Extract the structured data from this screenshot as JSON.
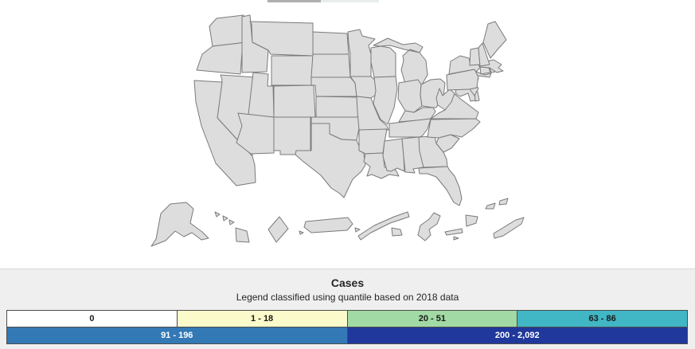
{
  "slider": {
    "filled_color": "#b0aeae",
    "empty_color": "#e8eeec"
  },
  "legend": {
    "title": "Cases",
    "subtitle": "Legend classified using quantile based on 2018 data",
    "panel_background": "#efefef",
    "cell_border_color": "#4c4c4c",
    "classes": [
      {
        "label": "0",
        "color": "#ffffff",
        "text_color": "#1a1a1a",
        "row": 1
      },
      {
        "label": "1 - 18",
        "color": "#fafacb",
        "text_color": "#1a1a1a",
        "row": 1
      },
      {
        "label": "20 - 51",
        "color": "#a2daa5",
        "text_color": "#1a1a1a",
        "row": 1
      },
      {
        "label": "63 - 86",
        "color": "#41b6c4",
        "text_color": "#1a1a1a",
        "row": 1
      },
      {
        "label": "91 - 196",
        "color": "#3379b6",
        "text_color": "#ffffff",
        "row": 2
      },
      {
        "label": "200 - 2,092",
        "color": "#20389b",
        "text_color": "#ffffff",
        "row": 2
      }
    ]
  },
  "map": {
    "border_color": "#7a7a7a",
    "background": "#ffffff",
    "states": [
      {
        "id": "WA",
        "name": "Washington",
        "class": 4
      },
      {
        "id": "OR",
        "name": "Oregon",
        "class": 3
      },
      {
        "id": "CA",
        "name": "California",
        "class": 5
      },
      {
        "id": "NV",
        "name": "Nevada",
        "class": 3
      },
      {
        "id": "ID",
        "name": "Idaho",
        "class": 1
      },
      {
        "id": "MT",
        "name": "Montana",
        "class": 1
      },
      {
        "id": "WY",
        "name": "Wyoming",
        "class": 1
      },
      {
        "id": "UT",
        "name": "Utah",
        "class": 1
      },
      {
        "id": "CO",
        "name": "Colorado",
        "class": 3
      },
      {
        "id": "AZ",
        "name": "Arizona",
        "class": 4
      },
      {
        "id": "NM",
        "name": "New Mexico",
        "class": 2
      },
      {
        "id": "ND",
        "name": "North Dakota",
        "class": 1
      },
      {
        "id": "SD",
        "name": "South Dakota",
        "class": 1
      },
      {
        "id": "NE",
        "name": "Nebraska",
        "class": 2
      },
      {
        "id": "KS",
        "name": "Kansas",
        "class": 2
      },
      {
        "id": "OK",
        "name": "Oklahoma",
        "class": 3
      },
      {
        "id": "TX",
        "name": "Texas",
        "class": 5
      },
      {
        "id": "MN",
        "name": "Minnesota",
        "class": 4
      },
      {
        "id": "IA",
        "name": "Iowa",
        "class": 2
      },
      {
        "id": "MO",
        "name": "Missouri",
        "class": 3
      },
      {
        "id": "AR",
        "name": "Arkansas",
        "class": 3
      },
      {
        "id": "LA",
        "name": "Louisiana",
        "class": 4
      },
      {
        "id": "WI",
        "name": "Wisconsin",
        "class": 2
      },
      {
        "id": "IL",
        "name": "Illinois",
        "class": 5
      },
      {
        "id": "MI",
        "name": "Michigan",
        "class": 4
      },
      {
        "id": "IN",
        "name": "Indiana",
        "class": 4
      },
      {
        "id": "OH",
        "name": "Ohio",
        "class": 4
      },
      {
        "id": "KY",
        "name": "Kentucky",
        "class": 3
      },
      {
        "id": "TN",
        "name": "Tennessee",
        "class": 4
      },
      {
        "id": "MS",
        "name": "Mississippi",
        "class": 3
      },
      {
        "id": "AL",
        "name": "Alabama",
        "class": 4
      },
      {
        "id": "GA",
        "name": "Georgia",
        "class": 5
      },
      {
        "id": "FL",
        "name": "Florida",
        "class": 5
      },
      {
        "id": "SC",
        "name": "South Carolina",
        "class": 3
      },
      {
        "id": "NC",
        "name": "North Carolina",
        "class": 4
      },
      {
        "id": "VA",
        "name": "Virginia",
        "class": 5
      },
      {
        "id": "WV",
        "name": "West Virginia",
        "class": 1
      },
      {
        "id": "MD",
        "name": "Maryland",
        "class": 5
      },
      {
        "id": "DE",
        "name": "Delaware",
        "class": 2
      },
      {
        "id": "NJ",
        "name": "New Jersey",
        "class": 5
      },
      {
        "id": "PA",
        "name": "Pennsylvania",
        "class": 5
      },
      {
        "id": "NY",
        "name": "New York",
        "class": 5
      },
      {
        "id": "CT",
        "name": "Connecticut",
        "class": 2
      },
      {
        "id": "RI",
        "name": "Rhode Island",
        "class": 3
      },
      {
        "id": "MA",
        "name": "Massachusetts",
        "class": 5
      },
      {
        "id": "VT",
        "name": "Vermont",
        "class": 0
      },
      {
        "id": "NH",
        "name": "New Hampshire",
        "class": 1
      },
      {
        "id": "ME",
        "name": "Maine",
        "class": 1
      },
      {
        "id": "AK",
        "name": "Alaska",
        "class": 3
      },
      {
        "id": "HI",
        "name": "Hawaii",
        "class": 4
      },
      {
        "id": "DC",
        "name": "District of Columbia",
        "class": 2
      },
      {
        "id": "PR",
        "name": "Puerto Rico",
        "class": 2
      },
      {
        "id": "AS",
        "name": "American Samoa",
        "class": 1
      },
      {
        "id": "GU",
        "name": "Guam",
        "class": 3
      },
      {
        "id": "MP",
        "name": "Northern Mariana Islands",
        "class": 2
      },
      {
        "id": "VI",
        "name": "U.S. Virgin Islands",
        "class": 0
      }
    ]
  }
}
